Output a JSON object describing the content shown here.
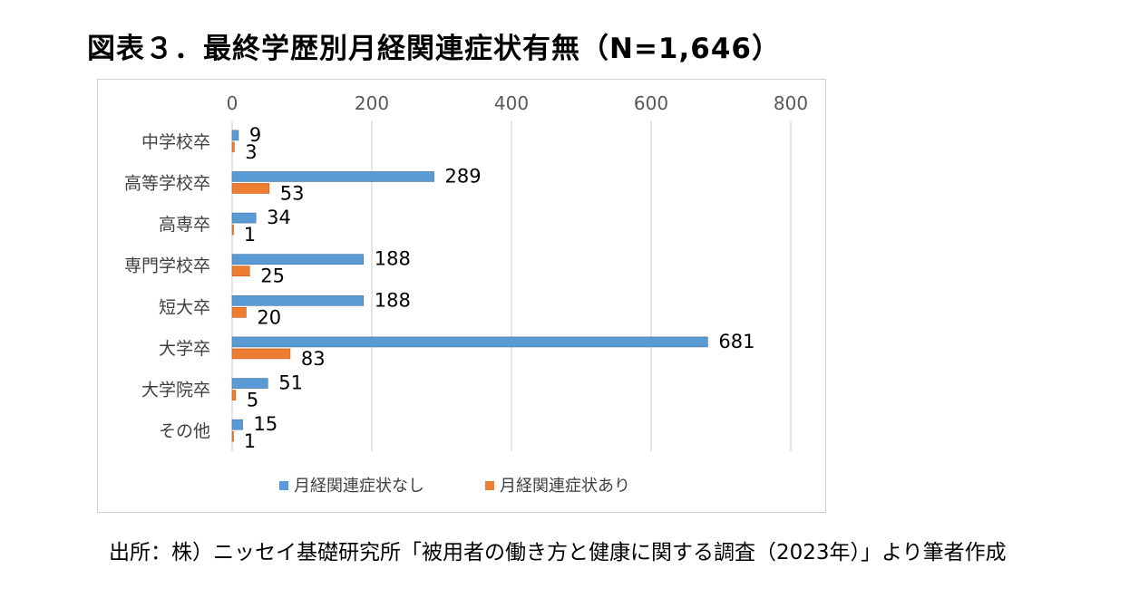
{
  "title": "図表３．最終学歴別月経関連症状有無（N=1,646）",
  "source": "出所：株）ニッセイ基礎研究所「被用者の働き方と健康に関する調査（2023年）」より筆者作成",
  "colors": {
    "series_none": "#5b9bd5",
    "series_some": "#ed7d31",
    "grid": "#d9d9d9"
  },
  "chart_data": {
    "type": "bar",
    "orientation": "horizontal",
    "categories": [
      "中学校卒",
      "高等学校卒",
      "高専卒",
      "専門学校卒",
      "短大卒",
      "大学卒",
      "大学院卒",
      "その他"
    ],
    "series": [
      {
        "name": "月経関連症状なし",
        "values": [
          9,
          289,
          34,
          188,
          188,
          681,
          51,
          15
        ]
      },
      {
        "name": "月経関連症状あり",
        "values": [
          3,
          53,
          1,
          25,
          20,
          83,
          5,
          1
        ]
      }
    ],
    "xlim": [
      0,
      800
    ],
    "xticks": [
      0,
      200,
      400,
      600,
      800
    ],
    "x_axis_position": "top",
    "grid": true,
    "legend": "bottom"
  }
}
